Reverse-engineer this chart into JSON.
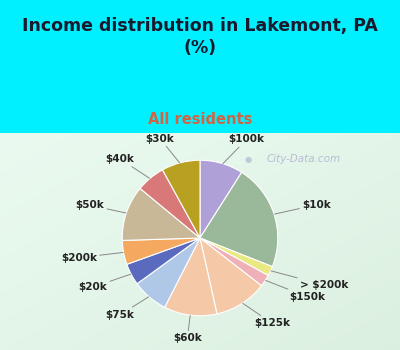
{
  "title": "Income distribution in Lakemont, PA\n(%)",
  "subtitle": "All residents",
  "labels": [
    "$100k",
    "$10k",
    "> $200k",
    "$150k",
    "$125k",
    "$60k",
    "$75k",
    "$20k",
    "$200k",
    "$50k",
    "$40k",
    "$30k"
  ],
  "sizes": [
    9.0,
    22.0,
    2.0,
    2.5,
    11.0,
    11.0,
    7.5,
    4.5,
    5.0,
    11.5,
    6.0,
    8.0
  ],
  "colors": [
    "#b0a0d8",
    "#9ab89a",
    "#e8ea80",
    "#f0b0b8",
    "#f5c8a8",
    "#f5c8a8",
    "#b0c8e8",
    "#5a6abf",
    "#f5a860",
    "#c8b898",
    "#d87878",
    "#b8a020"
  ],
  "bg_top_color": "#00f0ff",
  "bg_chart_color_tl": "#d8f0e0",
  "bg_chart_color_br": "#e8f8f0",
  "title_color": "#1a1a2e",
  "subtitle_color": "#cc6644",
  "watermark": "City-Data.com",
  "label_color": "#222222",
  "label_fontsize": 7.5,
  "pie_edge_color": "white",
  "pie_edge_width": 0.8,
  "label_distances": {
    "$100k": 1.32,
    "$10k": 1.38,
    "> $200k": 1.42,
    "$150k": 1.38,
    "$125k": 1.3,
    "$60k": 1.3,
    "$75k": 1.3,
    "$20k": 1.35,
    "$200k": 1.35,
    "$50k": 1.3,
    "$40k": 1.32,
    "$30k": 1.32
  }
}
